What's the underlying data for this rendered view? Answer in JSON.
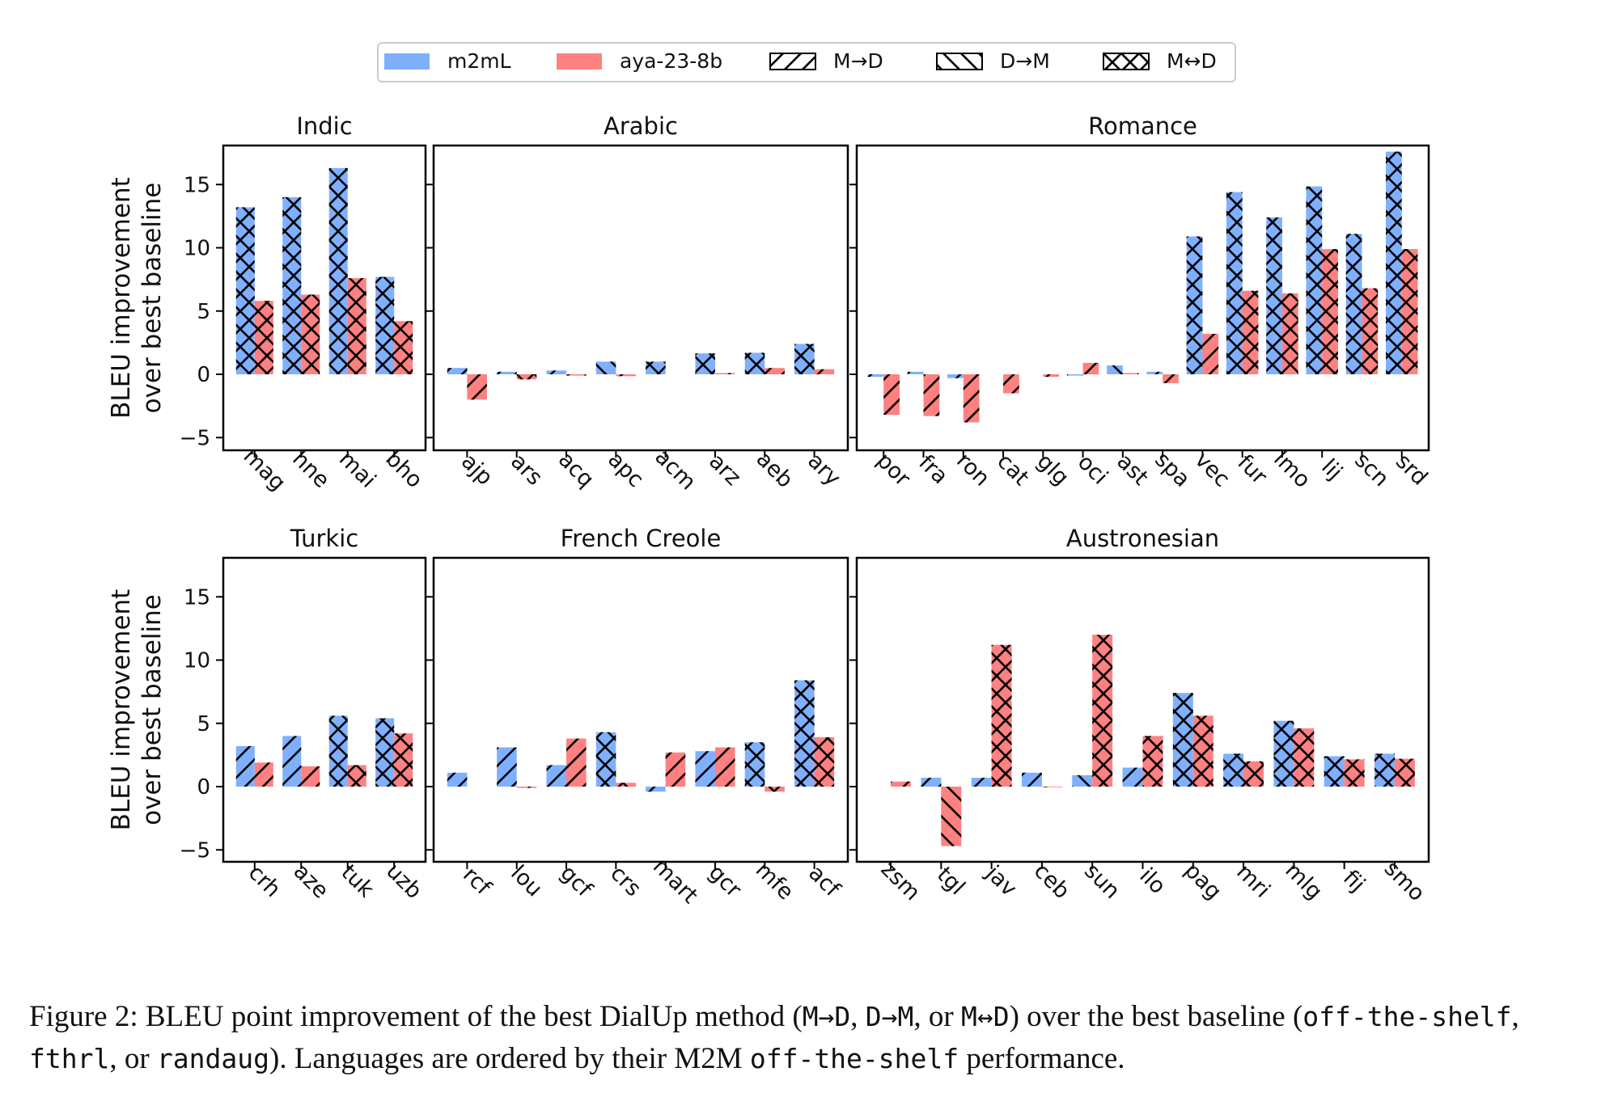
{
  "chart_data": {
    "type": "bar",
    "ylabel": "BLEU improvement\nover best baseline",
    "ylim": [
      -6,
      18
    ],
    "yticks": [
      -5,
      0,
      5,
      10,
      15
    ],
    "legend": {
      "placement": "top-center",
      "entries": [
        {
          "label": "m2mL",
          "kind": "color",
          "color": "#7fb0ff"
        },
        {
          "label": "aya-23-8b",
          "kind": "color",
          "color": "#ff8080"
        },
        {
          "label": "M→D",
          "kind": "hatch",
          "hatch": "md"
        },
        {
          "label": "D→M",
          "kind": "hatch",
          "hatch": "dm"
        },
        {
          "label": "M↔D",
          "kind": "hatch",
          "hatch": "both"
        }
      ]
    },
    "series_colors": {
      "m2mL": "#7fb0ff",
      "aya-23-8b": "#ff8080"
    },
    "panels": [
      {
        "title": "Indic",
        "row": 0,
        "categories": [
          "mag",
          "hne",
          "mai",
          "bho"
        ],
        "m2mL": [
          13.2,
          14.0,
          16.3,
          7.7
        ],
        "m2mL_method": [
          "both",
          "both",
          "both",
          "both"
        ],
        "aya": [
          5.8,
          6.3,
          7.6,
          4.2
        ],
        "aya_method": [
          "both",
          "both",
          "both",
          "both"
        ]
      },
      {
        "title": "Arabic",
        "row": 0,
        "categories": [
          "ajp",
          "ars",
          "acq",
          "apc",
          "acm",
          "arz",
          "aeb",
          "ary"
        ],
        "m2mL": [
          0.5,
          0.2,
          0.3,
          1.0,
          1.0,
          1.65,
          1.7,
          2.4
        ],
        "m2mL_method": [
          "md",
          "md",
          "md",
          "dm",
          "both",
          "both",
          "both",
          "both"
        ],
        "aya": [
          -2.0,
          -0.4,
          -0.1,
          -0.15,
          0,
          0.1,
          0.5,
          0.4
        ],
        "aya_method": [
          "md",
          "both",
          "md",
          "md",
          "md",
          "md",
          "md",
          "md"
        ]
      },
      {
        "title": "Romance",
        "row": 0,
        "categories": [
          "por",
          "fra",
          "ron",
          "cat",
          "glg",
          "oci",
          "ast",
          "spa",
          "vec",
          "fur",
          "lmo",
          "lij",
          "scn",
          "srd"
        ],
        "m2mL": [
          -0.2,
          0.2,
          -0.3,
          0,
          0,
          -0.1,
          0.7,
          0.2,
          10.9,
          14.4,
          12.4,
          14.85,
          11.1,
          17.6
        ],
        "m2mL_method": [
          "md",
          "md",
          "md",
          "md",
          "md",
          "md",
          "dm",
          "md",
          "both",
          "both",
          "both",
          "both",
          "both",
          "both"
        ],
        "aya": [
          -3.2,
          -3.3,
          -3.8,
          -1.5,
          -0.2,
          0.9,
          0.1,
          -0.7,
          3.2,
          6.6,
          6.4,
          9.9,
          6.8,
          9.9
        ],
        "aya_method": [
          "md",
          "md",
          "md",
          "md",
          "md",
          "md",
          "md",
          "md",
          "md",
          "both",
          "both",
          "both",
          "both",
          "both"
        ]
      },
      {
        "title": "Turkic",
        "row": 1,
        "categories": [
          "crh",
          "aze",
          "tuk",
          "uzb"
        ],
        "m2mL": [
          3.2,
          4.0,
          5.6,
          5.4
        ],
        "m2mL_method": [
          "md",
          "md",
          "both",
          "both"
        ],
        "aya": [
          1.9,
          1.6,
          1.7,
          4.2
        ],
        "aya_method": [
          "md",
          "md",
          "both",
          "both"
        ]
      },
      {
        "title": "French Creole",
        "row": 1,
        "categories": [
          "rcf",
          "lou",
          "gcf",
          "crs",
          "mart",
          "gcr",
          "mfe",
          "acf"
        ],
        "m2mL": [
          1.1,
          3.1,
          1.7,
          4.3,
          -0.4,
          2.8,
          3.5,
          8.4
        ],
        "m2mL_method": [
          "md",
          "md",
          "md",
          "both",
          "md",
          "md",
          "both",
          "both"
        ],
        "aya": [
          0,
          -0.1,
          3.8,
          0.3,
          2.7,
          3.1,
          -0.4,
          3.9
        ],
        "aya_method": [
          "md",
          "md",
          "md",
          "both",
          "md",
          "md",
          "both",
          "both"
        ]
      },
      {
        "title": "Austronesian",
        "row": 1,
        "categories": [
          "zsm",
          "tgl",
          "jav",
          "ceb",
          "sun",
          "ilo",
          "pag",
          "mri",
          "mlg",
          "fij",
          "smo"
        ],
        "m2mL": [
          0,
          0.7,
          0.7,
          1.1,
          0.9,
          1.5,
          7.4,
          2.6,
          5.2,
          2.4,
          2.6
        ],
        "m2mL_method": [
          "md",
          "md",
          "md",
          "md",
          "dm",
          "md",
          "both",
          "both",
          "both",
          "both",
          "both"
        ],
        "aya": [
          0.4,
          -4.7,
          11.2,
          -0.05,
          12.0,
          4.0,
          5.6,
          2.0,
          4.6,
          2.15,
          2.2
        ],
        "aya_method": [
          "md",
          "dm",
          "both",
          "md",
          "both",
          "both",
          "both",
          "both",
          "both",
          "both",
          "both"
        ]
      }
    ]
  },
  "caption": {
    "prefix": "Figure 2:  BLEU point improvement of the best DialUp method (",
    "m1": "M→D",
    "sep1": ", ",
    "m2": "D→M",
    "sep2": ", or ",
    "m3": "M↔D",
    "mid": ") over the best baseline (",
    "b1": "off-the-shelf",
    "sep3": ", ",
    "b2": "fthrl",
    "sep4": ", or ",
    "b3": "randaug",
    "mid2": "). Languages are ordered by their M2M ",
    "b4": "off-the-shelf",
    "suffix": " performance."
  }
}
